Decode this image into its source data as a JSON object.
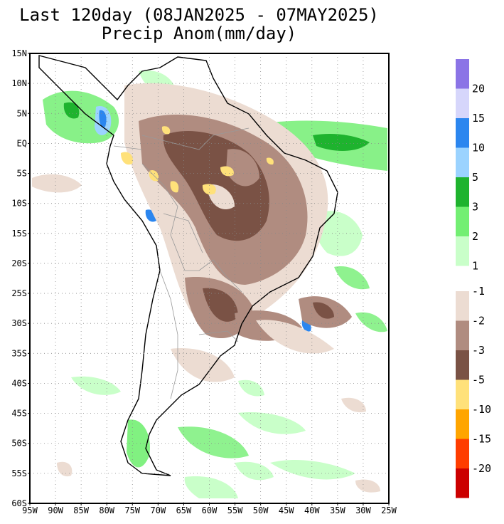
{
  "title_line1": "Last 120day (08JAN2025 - 07MAY2025)",
  "title_line2": "Precip Anom(mm/day)",
  "lat_labels": [
    "15N",
    "10N",
    "5N",
    "EQ",
    "5S",
    "10S",
    "15S",
    "20S",
    "25S",
    "30S",
    "35S",
    "40S",
    "45S",
    "50S",
    "55S",
    "60S"
  ],
  "lon_labels": [
    "95W",
    "90W",
    "85W",
    "80W",
    "75W",
    "70W",
    "65W",
    "60W",
    "55W",
    "50W",
    "45W",
    "40W",
    "35W",
    "30W",
    "25W"
  ],
  "legend_wet": [
    {
      "color": "#8b74e6",
      "label": ""
    },
    {
      "color": "#d6d6fb",
      "label": "20"
    },
    {
      "color": "#2b86ef",
      "label": "15"
    },
    {
      "color": "#9bd3ff",
      "label": "10"
    },
    {
      "color": "#1eb32e",
      "label": "5"
    },
    {
      "color": "#73ef73",
      "label": "3"
    },
    {
      "color": "#c9ffc9",
      "label": "2"
    }
  ],
  "legend_wet_bottom_label": "1",
  "legend_dry": [
    {
      "color": "#ecdcd2",
      "label": "-1"
    },
    {
      "color": "#b08c80",
      "label": "-2"
    },
    {
      "color": "#7a5245",
      "label": "-3"
    },
    {
      "color": "#ffe17a",
      "label": "-5"
    },
    {
      "color": "#ffa500",
      "label": "-10"
    },
    {
      "color": "#ff3d00",
      "label": "-15"
    },
    {
      "color": "#cc0000",
      "label": "-20"
    }
  ]
}
